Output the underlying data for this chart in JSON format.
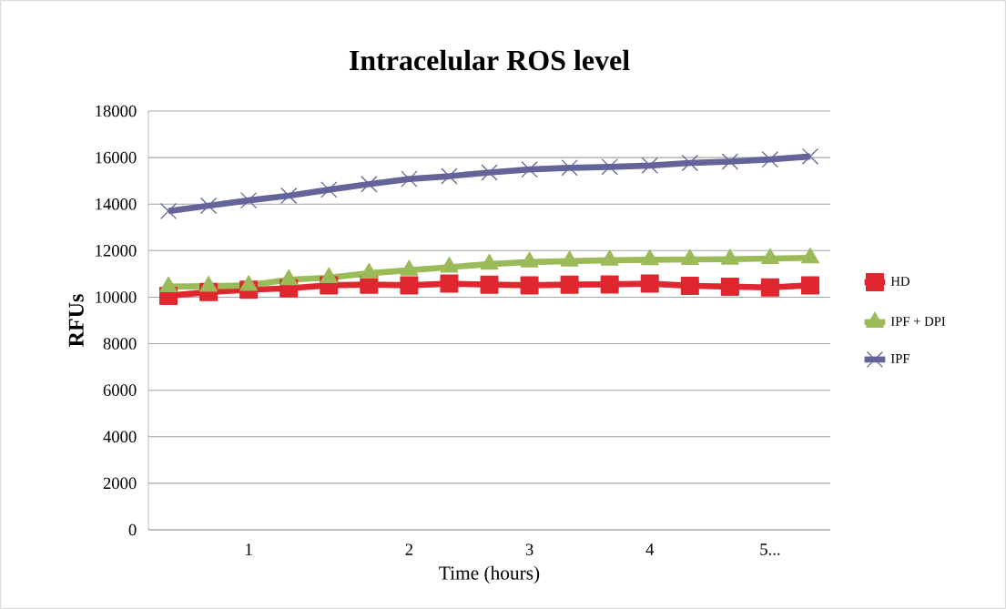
{
  "chart_data": {
    "type": "line",
    "title": "Intracelular ROS level",
    "xlabel": "Time (hours)",
    "ylabel": "RFUs",
    "categories": [
      null,
      null,
      "1",
      null,
      null,
      null,
      "2",
      null,
      null,
      "3",
      null,
      null,
      "4",
      null,
      null,
      "5...",
      null
    ],
    "series": [
      {
        "name": "HD",
        "color": "#e0262f",
        "marker": "square",
        "values": [
          10060,
          10220,
          10320,
          10380,
          10510,
          10540,
          10510,
          10580,
          10540,
          10510,
          10540,
          10550,
          10580,
          10490,
          10450,
          10420,
          10510
        ]
      },
      {
        "name": "IPF + DPI",
        "color": "#9bbb59",
        "marker": "triangle",
        "values": [
          10450,
          10470,
          10510,
          10750,
          10840,
          11030,
          11160,
          11290,
          11420,
          11510,
          11550,
          11590,
          11610,
          11620,
          11630,
          11660,
          11690
        ]
      },
      {
        "name": "IPF",
        "color": "#64649a",
        "marker": "cross",
        "values": [
          13700,
          13930,
          14160,
          14360,
          14620,
          14860,
          15080,
          15200,
          15360,
          15490,
          15560,
          15600,
          15660,
          15770,
          15830,
          15920,
          16050
        ]
      }
    ],
    "ylim": [
      0,
      18000
    ],
    "yticks": [
      0,
      2000,
      4000,
      6000,
      8000,
      10000,
      12000,
      14000,
      16000,
      18000
    ],
    "grid": "y",
    "legend": "right"
  }
}
